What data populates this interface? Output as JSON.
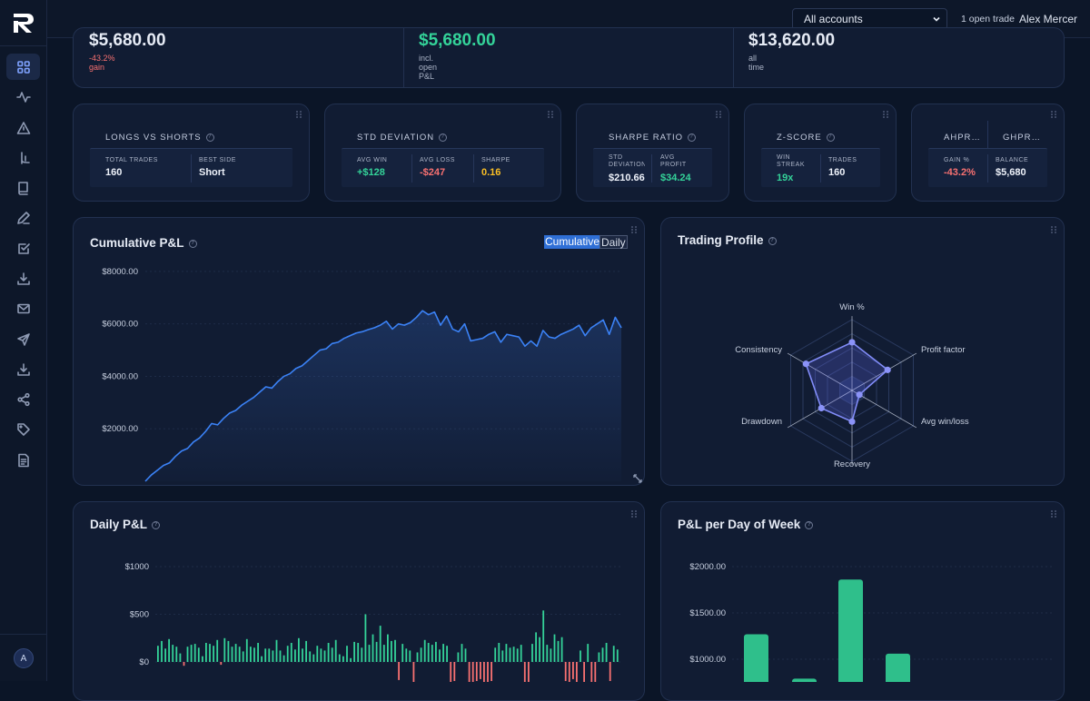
{
  "topbar": {
    "account_select": "All accounts",
    "open_trades": "1 open trade",
    "user_name": "Alex Mercer"
  },
  "sidebar": {
    "avatar_initial": "A",
    "items": [
      "dashboard",
      "activity",
      "alert",
      "journal",
      "book",
      "pen",
      "checklist",
      "import",
      "mail",
      "send",
      "download",
      "share",
      "tags",
      "report"
    ]
  },
  "summary": [
    {
      "value": "$5,680.00",
      "sub": "-43.2% gain",
      "value_color": "#e6ebf5",
      "sub_color": "#f87171"
    },
    {
      "value": "$5,680.00",
      "sub": "incl. open P&L",
      "value_color": "#34d399",
      "sub_color": "#aab3c6"
    },
    {
      "value": "$13,620.00",
      "sub": "all time",
      "value_color": "#e6ebf5",
      "sub_color": "#aab3c6"
    }
  ],
  "metrics": {
    "longs_shorts": {
      "title": "LONGS VS SHORTS",
      "cells": [
        {
          "label": "TOTAL TRADES",
          "value": "160"
        },
        {
          "label": "BEST SIDE",
          "value": "Short"
        }
      ]
    },
    "std_dev": {
      "title": "STD DEVIATION",
      "cells": [
        {
          "label": "AVG WIN",
          "value": "+$128"
        },
        {
          "label": "AVG LOSS",
          "value": "-$247"
        },
        {
          "label": "SHARPE",
          "value": "0.16"
        }
      ]
    },
    "sharpe": {
      "title": "SHARPE RATIO",
      "cells": [
        {
          "label": "STD DEVIATION",
          "value": "$210.66"
        },
        {
          "label": "AVG PROFIT",
          "value": "$34.24"
        }
      ]
    },
    "zscore": {
      "title": "Z-SCORE",
      "cells": [
        {
          "label": "WIN STREAK",
          "value": "19x"
        },
        {
          "label": "TRADES",
          "value": "160"
        }
      ]
    },
    "ahpr": {
      "title1": "AHPR…",
      "title2": "GHPR…",
      "cells": [
        {
          "label": "GAIN %",
          "value": "-43.2%"
        },
        {
          "label": "BALANCE",
          "value": "$5,680"
        }
      ]
    }
  },
  "cumulative": {
    "title": "Cumulative P&L",
    "toggle_on": "Cumulative",
    "toggle_off": "Daily",
    "chart_data": {
      "type": "area",
      "yticks": [
        "$8000.00",
        "$6000.00",
        "$4000.00",
        "$2000.00"
      ],
      "ylim": [
        0,
        9000
      ],
      "y": [
        0,
        240,
        420,
        600,
        700,
        950,
        1150,
        1250,
        1500,
        1650,
        1900,
        2200,
        2150,
        2400,
        2600,
        2700,
        2900,
        3050,
        3200,
        3400,
        3600,
        3550,
        3800,
        4000,
        4100,
        4300,
        4400,
        4600,
        4800,
        5000,
        5050,
        5250,
        5300,
        5450,
        5550,
        5650,
        5700,
        5780,
        5850,
        5950,
        6100,
        5800,
        6000,
        5950,
        6050,
        6250,
        6500,
        6350,
        6450,
        5950,
        6300,
        5800,
        5700,
        6000,
        5350,
        5400,
        5450,
        5600,
        5700,
        5300,
        5600,
        5550,
        5500,
        5150,
        5350,
        5150,
        5750,
        5500,
        5450,
        5600,
        5700,
        5800,
        5950,
        5550,
        5850,
        6000,
        6150,
        5600,
        6250,
        5850
      ]
    }
  },
  "profile": {
    "title": "Trading Profile",
    "chart_data": {
      "type": "radar",
      "axes": [
        "Win %",
        "Profit factor",
        "Avg win/loss",
        "Recovery",
        "Drawdown",
        "Consistency"
      ],
      "values": [
        0.68,
        0.58,
        0.12,
        0.44,
        0.5,
        0.75
      ],
      "max": 1
    }
  },
  "daily": {
    "title": "Daily P&L",
    "chart_data": {
      "type": "bar",
      "yticks": [
        "$1000",
        "$500",
        "$0"
      ],
      "ylim": [
        -500,
        1000
      ],
      "values": [
        170,
        220,
        140,
        240,
        180,
        160,
        90,
        -40,
        160,
        180,
        190,
        150,
        60,
        200,
        190,
        170,
        230,
        -30,
        250,
        220,
        160,
        190,
        160,
        110,
        240,
        160,
        150,
        200,
        60,
        140,
        140,
        120,
        230,
        120,
        70,
        170,
        200,
        130,
        250,
        140,
        220,
        110,
        80,
        170,
        140,
        120,
        200,
        150,
        230,
        80,
        60,
        170,
        40,
        210,
        200,
        150,
        500,
        180,
        290,
        210,
        380,
        180,
        290,
        220,
        230,
        -190,
        190,
        140,
        120,
        -240,
        100,
        150,
        230,
        200,
        180,
        210,
        130,
        190,
        170,
        -210,
        -200,
        100,
        190,
        140,
        -260,
        -220,
        -200,
        -180,
        -250,
        -240,
        -200,
        150,
        200,
        120,
        190,
        150,
        160,
        140,
        180,
        -230,
        -210,
        190,
        310,
        260,
        540,
        180,
        140,
        290,
        220,
        260,
        -200,
        -220,
        -180,
        -210,
        120,
        -210,
        190,
        -240,
        -230,
        100,
        150,
        200,
        -200,
        170,
        130
      ]
    }
  },
  "dow": {
    "title": "P&L per Day of Week",
    "chart_data": {
      "type": "bar",
      "yticks": [
        "$2000.00",
        "$1500.00",
        "$1000.00"
      ],
      "ylim": [
        0,
        2200
      ],
      "values": [
        1270,
        790,
        1860,
        1060
      ]
    }
  }
}
